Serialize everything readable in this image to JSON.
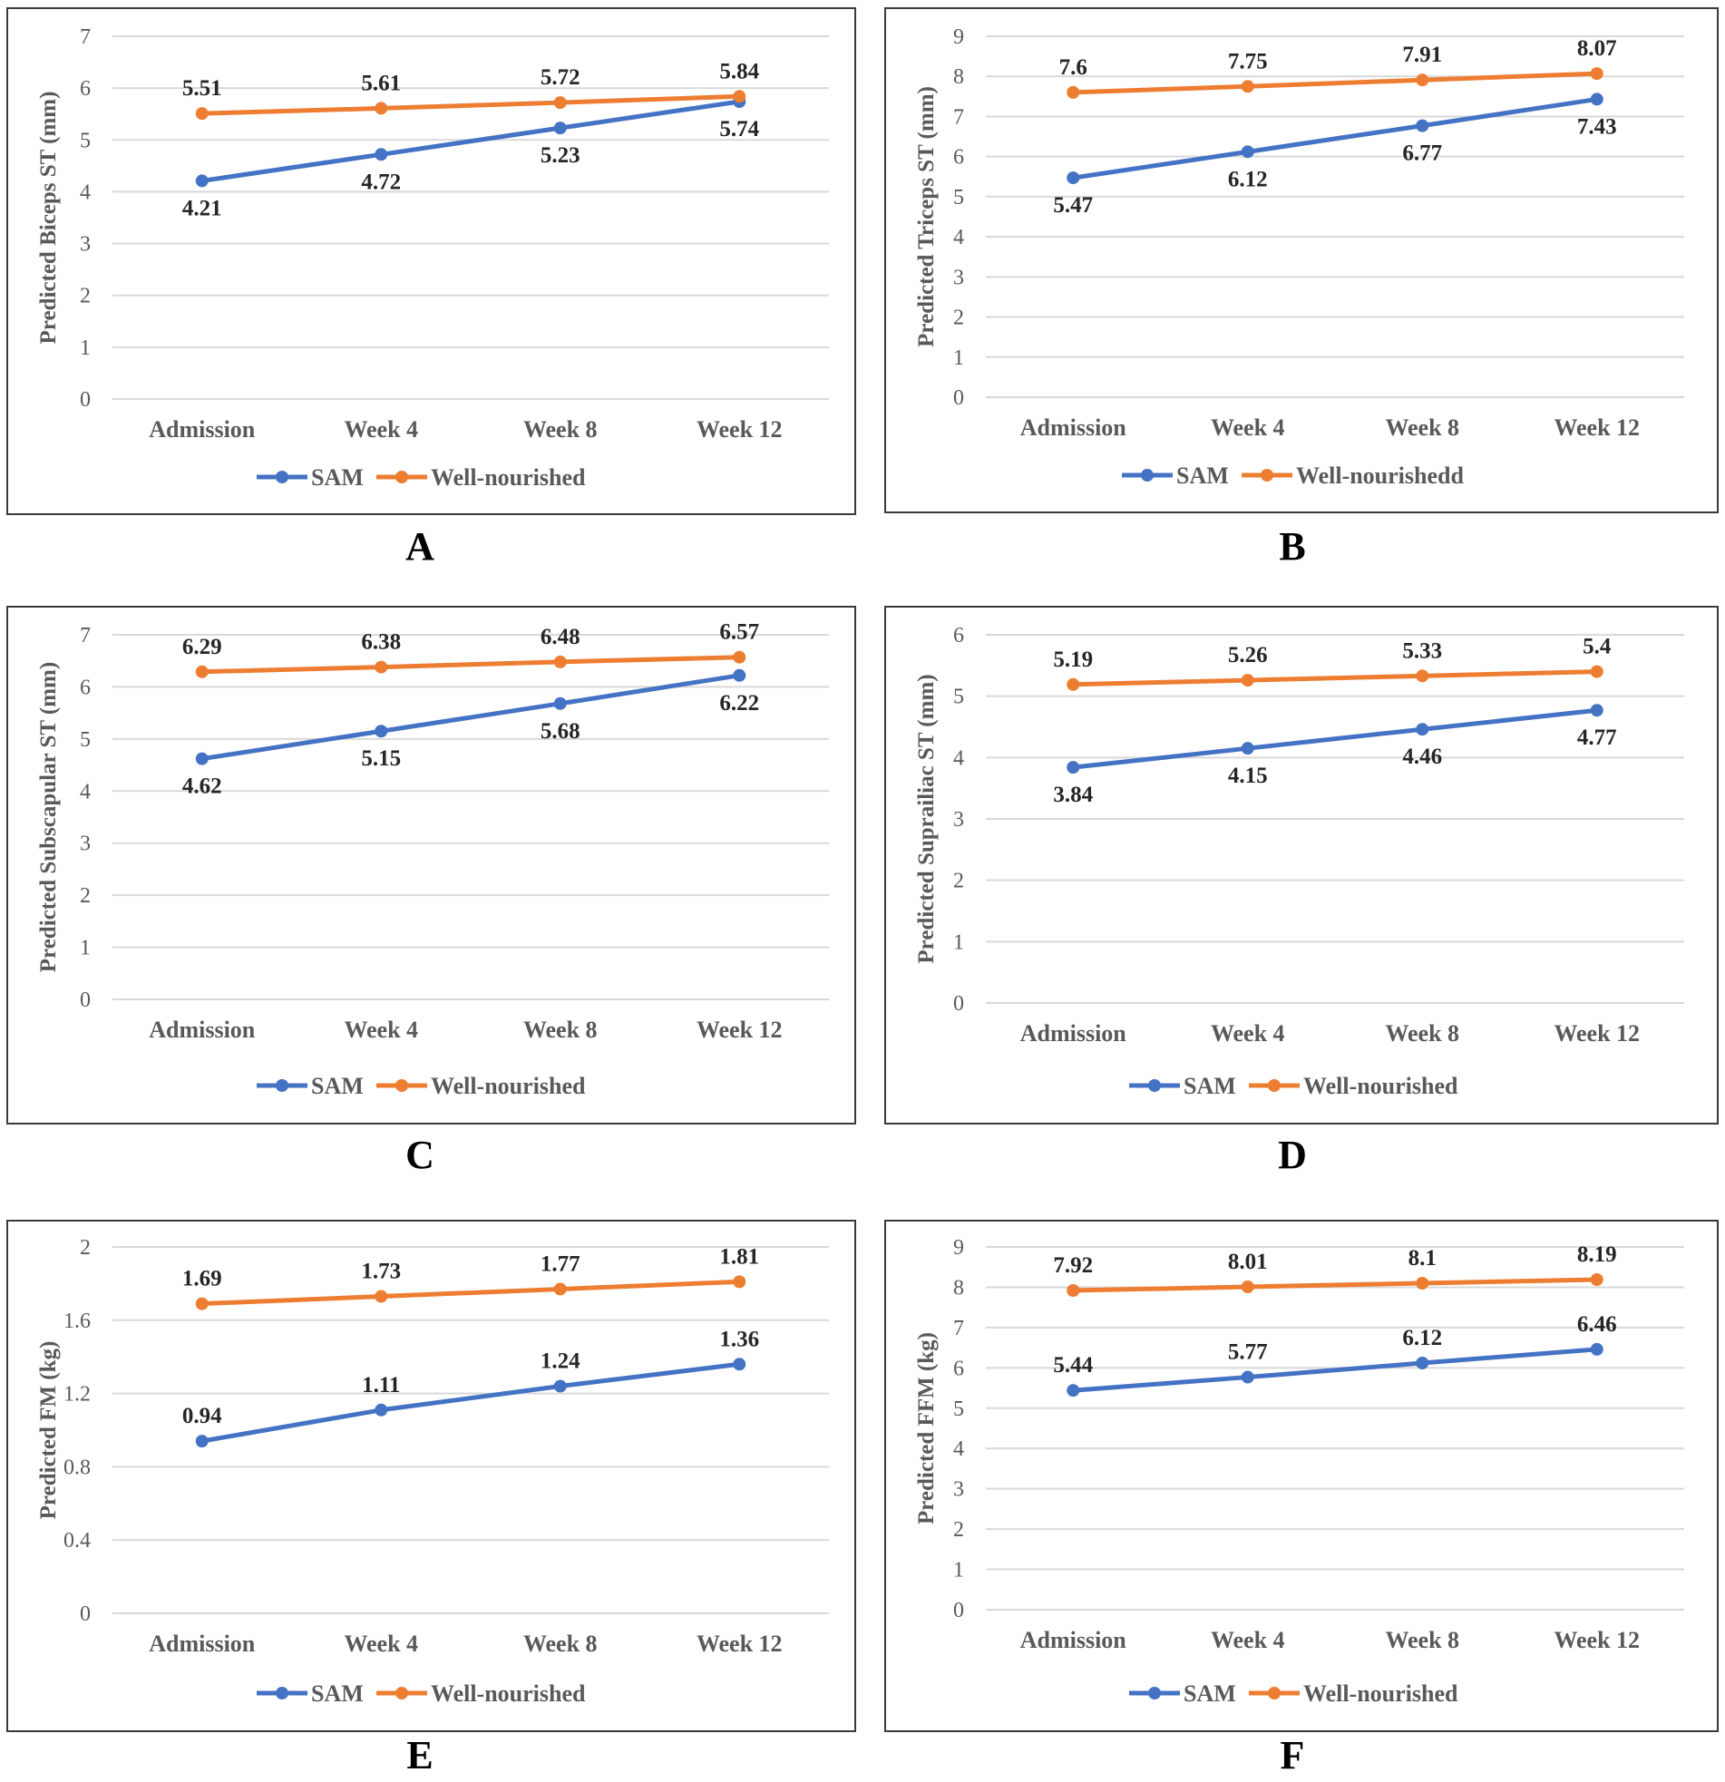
{
  "colors": {
    "sam": "#4472c4",
    "well_nourished": "#ed7d31"
  },
  "chart_data": [
    {
      "panel": "A",
      "type": "line",
      "categories": [
        "Admission",
        "Week 4",
        "Week 8",
        "Week 12"
      ],
      "ylabel": "Predicted Biceps ST (mm)",
      "ylim": [
        0,
        7
      ],
      "yticks": [
        "0",
        "1",
        "2",
        "3",
        "4",
        "5",
        "6",
        "7"
      ],
      "series": [
        {
          "name": "SAM",
          "values": [
            4.21,
            4.72,
            5.23,
            5.74
          ],
          "labels": [
            "4.21",
            "4.72",
            "5.23",
            "5.74"
          ],
          "label_pos": [
            "below",
            "below",
            "below",
            "below"
          ]
        },
        {
          "name": "Well-nourished",
          "values": [
            5.51,
            5.61,
            5.72,
            5.84
          ],
          "labels": [
            "5.51",
            "5.61",
            "5.72",
            "5.84"
          ],
          "label_pos": [
            "above",
            "above",
            "above",
            "above"
          ]
        }
      ]
    },
    {
      "panel": "B",
      "type": "line",
      "categories": [
        "Admission",
        "Week 4",
        "Week 8",
        "Week 12"
      ],
      "ylabel": "Predicted Triceps ST (mm)",
      "ylim": [
        0,
        9
      ],
      "yticks": [
        "0",
        "1",
        "2",
        "3",
        "4",
        "5",
        "6",
        "7",
        "8",
        "9"
      ],
      "series": [
        {
          "name": "SAM",
          "values": [
            5.47,
            6.12,
            6.77,
            7.43
          ],
          "labels": [
            "5.47",
            "6.12",
            "6.77",
            "7.43"
          ],
          "label_pos": [
            "below",
            "below",
            "below",
            "below"
          ]
        },
        {
          "name": "Well-nourishedd",
          "values": [
            7.6,
            7.75,
            7.91,
            8.07
          ],
          "labels": [
            "7.6",
            "7.75",
            "7.91",
            "8.07"
          ],
          "label_pos": [
            "above",
            "above",
            "above",
            "above"
          ]
        }
      ]
    },
    {
      "panel": "C",
      "type": "line",
      "categories": [
        "Admission",
        "Week 4",
        "Week 8",
        "Week 12"
      ],
      "ylabel": "Predicted Subscapular ST (mm)",
      "ylim": [
        0,
        7
      ],
      "yticks": [
        "0",
        "1",
        "2",
        "3",
        "4",
        "5",
        "6",
        "7"
      ],
      "series": [
        {
          "name": "SAM",
          "values": [
            4.62,
            5.15,
            5.68,
            6.22
          ],
          "labels": [
            "4.62",
            "5.15",
            "5.68",
            "6.22"
          ],
          "label_pos": [
            "below",
            "below",
            "below",
            "below"
          ]
        },
        {
          "name": "Well-nourished",
          "values": [
            6.29,
            6.38,
            6.48,
            6.57
          ],
          "labels": [
            "6.29",
            "6.38",
            "6.48",
            "6.57"
          ],
          "label_pos": [
            "above",
            "above",
            "above",
            "above"
          ]
        }
      ]
    },
    {
      "panel": "D",
      "type": "line",
      "categories": [
        "Admission",
        "Week 4",
        "Week 8",
        "Week 12"
      ],
      "ylabel": "Predicted Suprailiac ST (mm)",
      "ylim": [
        0,
        6
      ],
      "yticks": [
        "0",
        "1",
        "2",
        "3",
        "4",
        "5",
        "6"
      ],
      "series": [
        {
          "name": "SAM",
          "values": [
            3.84,
            4.15,
            4.46,
            4.77
          ],
          "labels": [
            "3.84",
            "4.15",
            "4.46",
            "4.77"
          ],
          "label_pos": [
            "below",
            "below",
            "below",
            "below"
          ]
        },
        {
          "name": "Well-nourished",
          "values": [
            5.19,
            5.26,
            5.33,
            5.4
          ],
          "labels": [
            "5.19",
            "5.26",
            "5.33",
            "5.4"
          ],
          "label_pos": [
            "above",
            "above",
            "above",
            "above"
          ]
        }
      ]
    },
    {
      "panel": "E",
      "type": "line",
      "categories": [
        "Admission",
        "Week 4",
        "Week 8",
        "Week 12"
      ],
      "ylabel": "Predicted FM (kg)",
      "ylim": [
        0,
        2
      ],
      "yticks": [
        "0",
        "0.4",
        "0.8",
        "1.2",
        "1.6",
        "2"
      ],
      "series": [
        {
          "name": "SAM",
          "values": [
            0.94,
            1.11,
            1.24,
            1.36
          ],
          "labels": [
            "0.94",
            "1.11",
            "1.24",
            "1.36"
          ],
          "label_pos": [
            "above",
            "above",
            "above",
            "above"
          ]
        },
        {
          "name": "Well-nourished",
          "values": [
            1.69,
            1.73,
            1.77,
            1.81
          ],
          "labels": [
            "1.69",
            "1.73",
            "1.77",
            "1.81"
          ],
          "label_pos": [
            "above",
            "above",
            "above",
            "above"
          ]
        }
      ]
    },
    {
      "panel": "F",
      "type": "line",
      "categories": [
        "Admission",
        "Week 4",
        "Week 8",
        "Week 12"
      ],
      "ylabel": "Predicted FFM (kg)",
      "ylim": [
        0,
        9
      ],
      "yticks": [
        "0",
        "1",
        "2",
        "3",
        "4",
        "5",
        "6",
        "7",
        "8",
        "9"
      ],
      "series": [
        {
          "name": "SAM",
          "values": [
            5.44,
            5.77,
            6.12,
            6.46
          ],
          "labels": [
            "5.44",
            "5.77",
            "6.12",
            "6.46"
          ],
          "label_pos": [
            "above",
            "above",
            "above",
            "above"
          ]
        },
        {
          "name": "Well-nourished",
          "values": [
            7.92,
            8.01,
            8.1,
            8.19
          ],
          "labels": [
            "7.92",
            "8.01",
            "8.1",
            "8.19"
          ],
          "label_pos": [
            "above",
            "above",
            "above",
            "above"
          ]
        }
      ]
    }
  ]
}
